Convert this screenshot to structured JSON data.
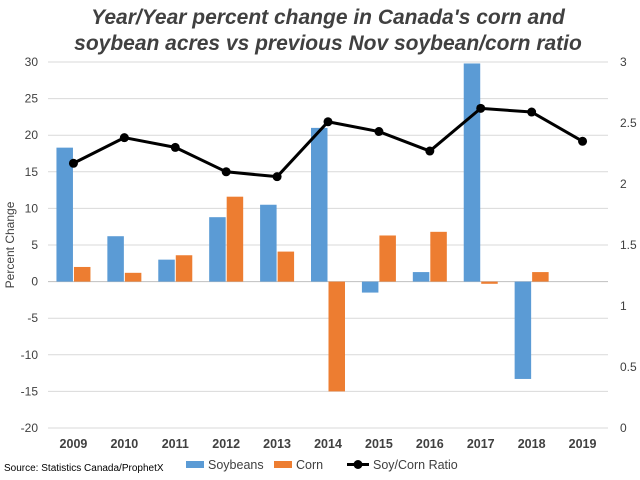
{
  "chart_data": {
    "type": "bar",
    "title_lines": [
      "Year/Year percent change in Canada's corn and",
      "soybean acres vs previous Nov soybean/corn ratio"
    ],
    "ylabel": "Percent Change",
    "source": "Source: Statistics Canada/ProphetX",
    "categories": [
      "2009",
      "2010",
      "2011",
      "2012",
      "2013",
      "2014",
      "2015",
      "2016",
      "2017",
      "2018",
      "2019"
    ],
    "ylim": [
      -20,
      30
    ],
    "y_ticks": [
      30,
      25,
      20,
      15,
      10,
      5,
      0,
      -5,
      -10,
      -15,
      -20
    ],
    "y2lim": [
      0,
      3
    ],
    "y2_ticks": [
      3,
      2.5,
      2,
      1.5,
      1,
      0.5,
      0
    ],
    "grid": true,
    "legend_position": "bottom",
    "series": [
      {
        "name": "Soybeans",
        "kind": "bar",
        "axis": "left",
        "color": "#5b9bd5",
        "values": [
          18.3,
          6.2,
          3.0,
          8.8,
          10.5,
          21.0,
          -1.5,
          1.3,
          29.8,
          -13.3,
          null
        ]
      },
      {
        "name": "Corn",
        "kind": "bar",
        "axis": "left",
        "color": "#ed7d31",
        "values": [
          2.0,
          1.2,
          3.6,
          11.6,
          4.1,
          -15.0,
          6.3,
          6.8,
          -0.3,
          1.3,
          null
        ]
      },
      {
        "name": "Soy/Corn Ratio",
        "kind": "line",
        "axis": "right",
        "color": "#000000",
        "values": [
          2.17,
          2.38,
          2.3,
          2.1,
          2.06,
          2.51,
          2.43,
          2.27,
          2.62,
          2.59,
          2.35
        ]
      }
    ]
  }
}
